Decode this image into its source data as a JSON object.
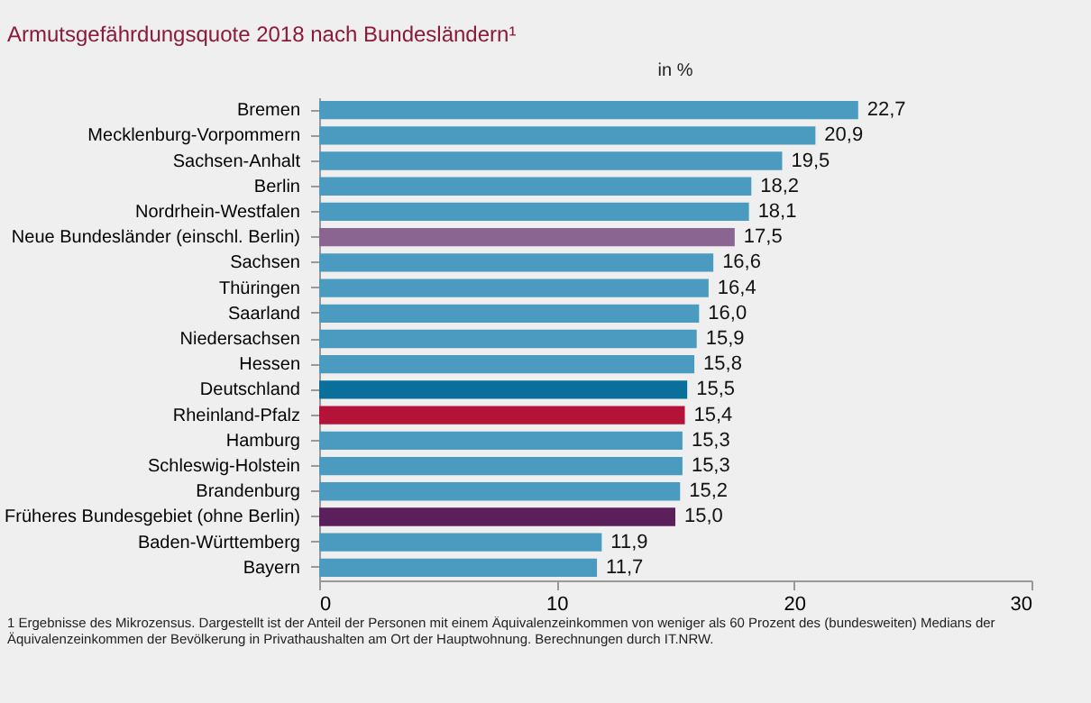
{
  "chart_data": {
    "type": "bar",
    "orientation": "horizontal",
    "title": "Armutsgefährdungsquote 2018 nach Bundesländern¹",
    "subtitle": "in %",
    "categories": [
      "Bremen",
      "Mecklenburg-Vorpommern",
      "Sachsen-Anhalt",
      "Berlin",
      "Nordrhein-Westfalen",
      "Neue Bundesländer (einschl. Berlin)",
      "Sachsen",
      "Thüringen",
      "Saarland",
      "Niedersachsen",
      "Hessen",
      "Deutschland",
      "Rheinland-Pfalz",
      "Hamburg",
      "Schleswig-Holstein",
      "Brandenburg",
      "Früheres Bundesgebiet (ohne Berlin)",
      "Baden-Württemberg",
      "Bayern"
    ],
    "values": [
      22.7,
      20.9,
      19.5,
      18.2,
      18.1,
      17.5,
      16.6,
      16.4,
      16.0,
      15.9,
      15.8,
      15.5,
      15.4,
      15.3,
      15.3,
      15.2,
      15.0,
      11.9,
      11.7
    ],
    "value_labels": [
      "22,7",
      "20,9",
      "19,5",
      "18,2",
      "18,1",
      "17,5",
      "16,6",
      "16,4",
      "16,0",
      "15,9",
      "15,8",
      "15,5",
      "15,4",
      "15,3",
      "15,3",
      "15,2",
      "15,0",
      "11,9",
      "11,7"
    ],
    "colors": [
      "#4a9bbf",
      "#4a9bbf",
      "#4a9bbf",
      "#4a9bbf",
      "#4a9bbf",
      "#8b6591",
      "#4a9bbf",
      "#4a9bbf",
      "#4a9bbf",
      "#4a9bbf",
      "#4a9bbf",
      "#0b6f9c",
      "#b5123a",
      "#4a9bbf",
      "#4a9bbf",
      "#4a9bbf",
      "#5b1f5b",
      "#4a9bbf",
      "#4a9bbf"
    ],
    "xlim": [
      0,
      30
    ],
    "xticks": [
      0,
      10,
      20,
      30
    ],
    "grid": false,
    "annotations": [
      "1 Ergebnisse des Mikrozensus. Dargestellt ist der Anteil der Personen mit einem Äquivalenzeinkommen von weniger als 60 Prozent des (bundesweiten) Medians der Äquivalenzeinkommen der Bevölkerung in Privathaushalten am Ort der Hauptwohnung. Berechnungen durch IT.NRW."
    ]
  }
}
